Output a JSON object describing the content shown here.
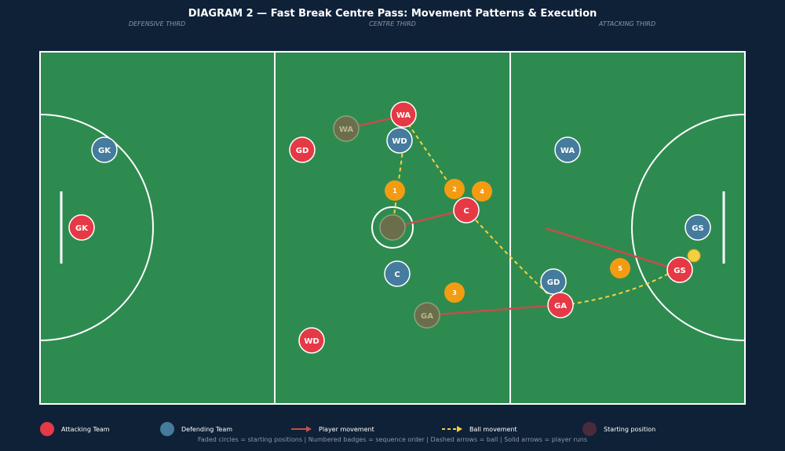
{
  "title": "DIAGRAM 2 — Fast Break Centre Pass: Movement Patterns & Execution",
  "zones": [
    "DEFENSIVE THIRD",
    "CENTRE THIRD",
    "ATTACKING THIRD"
  ],
  "colors": {
    "background": "#0f2137",
    "court": "#2e8b50",
    "lines": "#ffffff",
    "attacking": "#e63946",
    "defending": "#457b9d",
    "badge": "#f39c12",
    "ball": "#f4d03f",
    "ball_path": "#f4d03f",
    "player_path": "#c0504d",
    "starting": "#6b6e4b"
  },
  "players": [
    {
      "id": "att-gk",
      "label": "GK",
      "team": "attacking"
    },
    {
      "id": "att-gd",
      "label": "GD",
      "team": "attacking"
    },
    {
      "id": "att-wa",
      "label": "WA",
      "team": "attacking"
    },
    {
      "id": "att-c",
      "label": "C",
      "team": "attacking"
    },
    {
      "id": "att-wd",
      "label": "WD",
      "team": "attacking"
    },
    {
      "id": "att-ga",
      "label": "GA",
      "team": "attacking"
    },
    {
      "id": "att-gs",
      "label": "GS",
      "team": "attacking"
    },
    {
      "id": "def-gk",
      "label": "GK",
      "team": "defending"
    },
    {
      "id": "def-wd",
      "label": "WD",
      "team": "defending"
    },
    {
      "id": "def-c",
      "label": "C",
      "team": "defending"
    },
    {
      "id": "def-wa",
      "label": "WA",
      "team": "defending"
    },
    {
      "id": "def-gd",
      "label": "GD",
      "team": "defending"
    },
    {
      "id": "def-gs",
      "label": "GS",
      "team": "defending"
    }
  ],
  "starting_positions": [
    {
      "id": "start-wa",
      "label": "WA"
    },
    {
      "id": "start-c",
      "label": ""
    },
    {
      "id": "start-ga",
      "label": "GA"
    }
  ],
  "badges": [
    "1",
    "2",
    "3",
    "4",
    "5"
  ],
  "legend": {
    "attacking": "Attacking Team",
    "defending": "Defending Team",
    "player_movement": "Player movement",
    "ball_movement": "Ball movement",
    "starting": "Starting position"
  },
  "footnote": "Faded circles = starting positions  |  Numbered badges = sequence order  |  Dashed arrows = ball  |  Solid arrows = player runs"
}
